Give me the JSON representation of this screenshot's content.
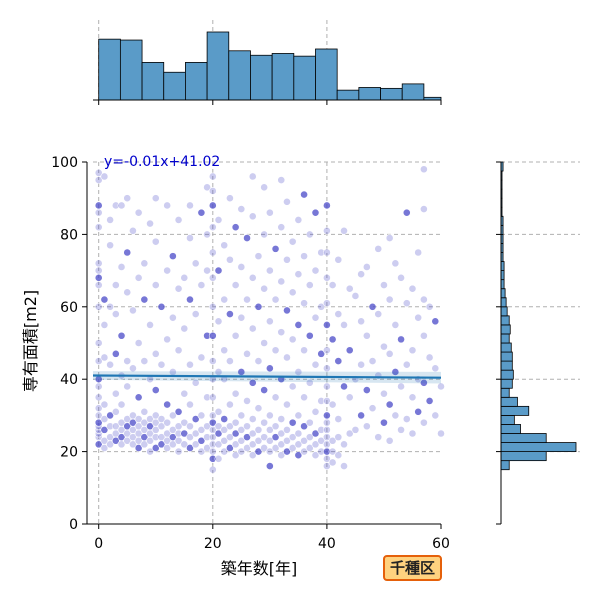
{
  "chart_data": {
    "type": "scatter",
    "xlabel": "築年数[年]",
    "ylabel": "専有面積[m2]",
    "xlim": [
      -1,
      60
    ],
    "ylim": [
      0,
      100
    ],
    "xticks": [
      0,
      20,
      40,
      60
    ],
    "yticks": [
      0,
      20,
      40,
      60,
      80,
      100
    ],
    "grid": true,
    "point_color": "#4a4ac8",
    "regression": {
      "label": "y=-0.01x+41.02",
      "slope": -0.01,
      "intercept": 41.02,
      "color": "#1f77b4"
    },
    "top_histogram": {
      "bin_edges": [
        0,
        3.8,
        7.6,
        11.4,
        15.2,
        19.0,
        22.8,
        26.6,
        30.4,
        34.2,
        38.0,
        41.8,
        45.6,
        49.4,
        53.2,
        57.0,
        60.0
      ],
      "counts": [
        68,
        67,
        42,
        31,
        42,
        76,
        55,
        50,
        52,
        49,
        57,
        11,
        14,
        13,
        18,
        3
      ],
      "color": "#5a9bc8"
    },
    "right_histogram": {
      "bin_edges": [
        15,
        17.5,
        20,
        22.5,
        25,
        27.5,
        30,
        32.5,
        35,
        37.5,
        40,
        42.5,
        45,
        47.5,
        50,
        52.5,
        55,
        57.5,
        60,
        62.5,
        65,
        67.5,
        70,
        72.5,
        75,
        77.5,
        80,
        82.5,
        85,
        87.5,
        90,
        92.5,
        95,
        97.5,
        100
      ],
      "counts": [
        8,
        44,
        73,
        44,
        19,
        13,
        27,
        16,
        8,
        11,
        12,
        11,
        11,
        10,
        8,
        9,
        8,
        6,
        5,
        4,
        3,
        3,
        3,
        2,
        2,
        2,
        2,
        2,
        1,
        1,
        1,
        1,
        1,
        2
      ],
      "color": "#5a9bc8"
    },
    "points": [
      [
        0,
        22
      ],
      [
        0,
        24
      ],
      [
        0,
        25
      ],
      [
        0,
        26
      ],
      [
        0,
        27
      ],
      [
        0,
        28
      ],
      [
        0,
        30
      ],
      [
        0,
        32
      ],
      [
        0,
        35
      ],
      [
        0,
        38
      ],
      [
        0,
        40
      ],
      [
        0,
        45
      ],
      [
        0,
        50
      ],
      [
        0,
        60
      ],
      [
        0,
        66
      ],
      [
        0,
        68
      ],
      [
        0,
        70
      ],
      [
        0,
        72
      ],
      [
        0,
        82
      ],
      [
        0,
        86
      ],
      [
        0,
        88
      ],
      [
        0,
        95
      ],
      [
        0,
        97
      ],
      [
        1,
        21
      ],
      [
        1,
        23
      ],
      [
        1,
        26
      ],
      [
        1,
        29
      ],
      [
        1,
        33
      ],
      [
        1,
        46
      ],
      [
        1,
        55
      ],
      [
        1,
        62
      ],
      [
        1,
        96
      ],
      [
        2,
        22
      ],
      [
        2,
        24
      ],
      [
        2,
        27
      ],
      [
        2,
        30
      ],
      [
        2,
        44
      ],
      [
        2,
        60
      ],
      [
        2,
        77
      ],
      [
        2,
        84
      ],
      [
        3,
        23
      ],
      [
        3,
        25
      ],
      [
        3,
        27
      ],
      [
        3,
        31
      ],
      [
        3,
        36
      ],
      [
        3,
        47
      ],
      [
        3,
        58
      ],
      [
        3,
        66
      ],
      [
        3,
        88
      ],
      [
        4,
        22
      ],
      [
        4,
        24
      ],
      [
        4,
        26
      ],
      [
        4,
        28
      ],
      [
        4,
        33
      ],
      [
        4,
        41
      ],
      [
        4,
        52
      ],
      [
        4,
        71
      ],
      [
        4,
        88
      ],
      [
        5,
        23
      ],
      [
        5,
        25
      ],
      [
        5,
        27
      ],
      [
        5,
        29
      ],
      [
        5,
        38
      ],
      [
        5,
        45
      ],
      [
        5,
        64
      ],
      [
        5,
        75
      ],
      [
        5,
        90
      ],
      [
        6,
        22
      ],
      [
        6,
        24
      ],
      [
        6,
        26
      ],
      [
        6,
        28
      ],
      [
        6,
        30
      ],
      [
        6,
        43
      ],
      [
        6,
        59
      ],
      [
        6,
        81
      ],
      [
        7,
        21
      ],
      [
        7,
        23
      ],
      [
        7,
        25
      ],
      [
        7,
        27
      ],
      [
        7,
        29
      ],
      [
        7,
        35
      ],
      [
        7,
        50
      ],
      [
        7,
        68
      ],
      [
        7,
        86
      ],
      [
        8,
        22
      ],
      [
        8,
        24
      ],
      [
        8,
        26
      ],
      [
        8,
        28
      ],
      [
        8,
        31
      ],
      [
        8,
        45
      ],
      [
        8,
        62
      ],
      [
        8,
        72
      ],
      [
        9,
        20
      ],
      [
        9,
        23
      ],
      [
        9,
        25
      ],
      [
        9,
        27
      ],
      [
        9,
        29
      ],
      [
        9,
        40
      ],
      [
        9,
        55
      ],
      [
        9,
        83
      ],
      [
        10,
        21
      ],
      [
        10,
        24
      ],
      [
        10,
        26
      ],
      [
        10,
        28
      ],
      [
        10,
        30
      ],
      [
        10,
        37
      ],
      [
        10,
        47
      ],
      [
        10,
        66
      ],
      [
        10,
        78
      ],
      [
        10,
        90
      ],
      [
        11,
        22
      ],
      [
        11,
        24
      ],
      [
        11,
        27
      ],
      [
        11,
        29
      ],
      [
        11,
        44
      ],
      [
        11,
        60
      ],
      [
        12,
        21
      ],
      [
        12,
        23
      ],
      [
        12,
        25
      ],
      [
        12,
        28
      ],
      [
        12,
        33
      ],
      [
        12,
        51
      ],
      [
        12,
        70
      ],
      [
        12,
        88
      ],
      [
        13,
        22
      ],
      [
        13,
        24
      ],
      [
        13,
        26
      ],
      [
        13,
        30
      ],
      [
        13,
        42
      ],
      [
        13,
        57
      ],
      [
        13,
        74
      ],
      [
        14,
        20
      ],
      [
        14,
        23
      ],
      [
        14,
        25
      ],
      [
        14,
        27
      ],
      [
        14,
        31
      ],
      [
        14,
        48
      ],
      [
        14,
        65
      ],
      [
        14,
        84
      ],
      [
        15,
        22
      ],
      [
        15,
        25
      ],
      [
        15,
        28
      ],
      [
        15,
        36
      ],
      [
        15,
        54
      ],
      [
        15,
        68
      ],
      [
        16,
        21
      ],
      [
        16,
        24
      ],
      [
        16,
        27
      ],
      [
        16,
        33
      ],
      [
        16,
        44
      ],
      [
        16,
        62
      ],
      [
        16,
        79
      ],
      [
        16,
        88
      ],
      [
        17,
        22
      ],
      [
        17,
        25
      ],
      [
        17,
        29
      ],
      [
        17,
        39
      ],
      [
        17,
        58
      ],
      [
        17,
        72
      ],
      [
        18,
        20
      ],
      [
        18,
        23
      ],
      [
        18,
        26
      ],
      [
        18,
        30
      ],
      [
        18,
        46
      ],
      [
        18,
        66
      ],
      [
        18,
        86
      ],
      [
        19,
        21
      ],
      [
        19,
        24
      ],
      [
        19,
        27
      ],
      [
        19,
        35
      ],
      [
        19,
        52
      ],
      [
        19,
        70
      ],
      [
        19,
        80
      ],
      [
        19,
        93
      ],
      [
        20,
        15
      ],
      [
        20,
        18
      ],
      [
        20,
        20
      ],
      [
        20,
        22
      ],
      [
        20,
        24
      ],
      [
        20,
        26
      ],
      [
        20,
        28
      ],
      [
        20,
        30
      ],
      [
        20,
        35
      ],
      [
        20,
        40
      ],
      [
        20,
        45
      ],
      [
        20,
        52
      ],
      [
        20,
        60
      ],
      [
        20,
        68
      ],
      [
        20,
        75
      ],
      [
        20,
        82
      ],
      [
        20,
        88
      ],
      [
        20,
        92
      ],
      [
        20,
        96
      ],
      [
        21,
        18
      ],
      [
        21,
        22
      ],
      [
        21,
        25
      ],
      [
        21,
        27
      ],
      [
        21,
        31
      ],
      [
        21,
        42
      ],
      [
        21,
        56
      ],
      [
        21,
        70
      ],
      [
        21,
        84
      ],
      [
        22,
        20
      ],
      [
        22,
        23
      ],
      [
        22,
        26
      ],
      [
        22,
        29
      ],
      [
        22,
        40
      ],
      [
        22,
        48
      ],
      [
        22,
        62
      ],
      [
        22,
        77
      ],
      [
        23,
        21
      ],
      [
        23,
        24
      ],
      [
        23,
        27
      ],
      [
        23,
        33
      ],
      [
        23,
        45
      ],
      [
        23,
        58
      ],
      [
        23,
        73
      ],
      [
        23,
        90
      ],
      [
        24,
        19
      ],
      [
        24,
        22
      ],
      [
        24,
        25
      ],
      [
        24,
        28
      ],
      [
        24,
        36
      ],
      [
        24,
        52
      ],
      [
        24,
        66
      ],
      [
        24,
        82
      ],
      [
        25,
        20
      ],
      [
        25,
        23
      ],
      [
        25,
        26
      ],
      [
        25,
        30
      ],
      [
        25,
        42
      ],
      [
        25,
        57
      ],
      [
        25,
        71
      ],
      [
        25,
        87
      ],
      [
        26,
        21
      ],
      [
        26,
        24
      ],
      [
        26,
        27
      ],
      [
        26,
        34
      ],
      [
        26,
        47
      ],
      [
        26,
        62
      ],
      [
        26,
        79
      ],
      [
        27,
        19
      ],
      [
        27,
        22
      ],
      [
        27,
        25
      ],
      [
        27,
        29
      ],
      [
        27,
        39
      ],
      [
        27,
        54
      ],
      [
        27,
        68
      ],
      [
        27,
        85
      ],
      [
        27,
        96
      ],
      [
        28,
        20
      ],
      [
        28,
        23
      ],
      [
        28,
        26
      ],
      [
        28,
        32
      ],
      [
        28,
        45
      ],
      [
        28,
        60
      ],
      [
        28,
        74
      ],
      [
        29,
        21
      ],
      [
        29,
        24
      ],
      [
        29,
        28
      ],
      [
        29,
        37
      ],
      [
        29,
        50
      ],
      [
        29,
        65
      ],
      [
        29,
        80
      ],
      [
        29,
        93
      ],
      [
        30,
        16
      ],
      [
        30,
        20
      ],
      [
        30,
        23
      ],
      [
        30,
        26
      ],
      [
        30,
        30
      ],
      [
        30,
        43
      ],
      [
        30,
        56
      ],
      [
        30,
        70
      ],
      [
        30,
        86
      ],
      [
        31,
        21
      ],
      [
        31,
        24
      ],
      [
        31,
        27
      ],
      [
        31,
        35
      ],
      [
        31,
        48
      ],
      [
        31,
        62
      ],
      [
        31,
        76
      ],
      [
        32,
        19
      ],
      [
        32,
        22
      ],
      [
        32,
        25
      ],
      [
        32,
        29
      ],
      [
        32,
        40
      ],
      [
        32,
        53
      ],
      [
        32,
        67
      ],
      [
        32,
        82
      ],
      [
        32,
        95
      ],
      [
        33,
        20
      ],
      [
        33,
        23
      ],
      [
        33,
        26
      ],
      [
        33,
        33
      ],
      [
        33,
        46
      ],
      [
        33,
        59
      ],
      [
        33,
        73
      ],
      [
        33,
        89
      ],
      [
        34,
        21
      ],
      [
        34,
        24
      ],
      [
        34,
        28
      ],
      [
        34,
        38
      ],
      [
        34,
        51
      ],
      [
        34,
        64
      ],
      [
        34,
        78
      ],
      [
        35,
        19
      ],
      [
        35,
        22
      ],
      [
        35,
        25
      ],
      [
        35,
        30
      ],
      [
        35,
        42
      ],
      [
        35,
        55
      ],
      [
        35,
        69
      ],
      [
        35,
        84
      ],
      [
        36,
        20
      ],
      [
        36,
        23
      ],
      [
        36,
        27
      ],
      [
        36,
        35
      ],
      [
        36,
        48
      ],
      [
        36,
        61
      ],
      [
        36,
        74
      ],
      [
        36,
        91
      ],
      [
        37,
        21
      ],
      [
        37,
        24
      ],
      [
        37,
        28
      ],
      [
        37,
        39
      ],
      [
        37,
        52
      ],
      [
        37,
        66
      ],
      [
        37,
        80
      ],
      [
        38,
        19
      ],
      [
        38,
        22
      ],
      [
        38,
        25
      ],
      [
        38,
        31
      ],
      [
        38,
        44
      ],
      [
        38,
        57
      ],
      [
        38,
        70
      ],
      [
        38,
        86
      ],
      [
        39,
        20
      ],
      [
        39,
        23
      ],
      [
        39,
        26
      ],
      [
        39,
        34
      ],
      [
        39,
        47
      ],
      [
        39,
        60
      ],
      [
        39,
        75
      ],
      [
        40,
        16
      ],
      [
        40,
        18
      ],
      [
        40,
        20
      ],
      [
        40,
        22
      ],
      [
        40,
        24
      ],
      [
        40,
        26
      ],
      [
        40,
        28
      ],
      [
        40,
        30
      ],
      [
        40,
        34
      ],
      [
        40,
        38
      ],
      [
        40,
        43
      ],
      [
        40,
        48
      ],
      [
        40,
        55
      ],
      [
        40,
        61
      ],
      [
        40,
        68
      ],
      [
        40,
        75
      ],
      [
        40,
        81
      ],
      [
        40,
        88
      ],
      [
        41,
        17
      ],
      [
        41,
        20
      ],
      [
        41,
        23
      ],
      [
        41,
        33
      ],
      [
        41,
        51
      ],
      [
        41,
        66
      ],
      [
        42,
        19
      ],
      [
        42,
        24
      ],
      [
        42,
        29
      ],
      [
        42,
        45
      ],
      [
        42,
        58
      ],
      [
        42,
        73
      ],
      [
        43,
        16
      ],
      [
        43,
        22
      ],
      [
        43,
        38
      ],
      [
        43,
        55
      ],
      [
        43,
        81
      ],
      [
        44,
        25
      ],
      [
        44,
        35
      ],
      [
        44,
        48
      ],
      [
        44,
        65
      ],
      [
        45,
        26
      ],
      [
        45,
        40
      ],
      [
        45,
        63
      ],
      [
        46,
        30
      ],
      [
        46,
        44
      ],
      [
        46,
        56
      ],
      [
        46,
        69
      ],
      [
        47,
        27
      ],
      [
        47,
        37
      ],
      [
        47,
        52
      ],
      [
        47,
        71
      ],
      [
        48,
        32
      ],
      [
        48,
        45
      ],
      [
        48,
        60
      ],
      [
        49,
        24
      ],
      [
        49,
        41
      ],
      [
        49,
        58
      ],
      [
        49,
        76
      ],
      [
        50,
        28
      ],
      [
        50,
        36
      ],
      [
        50,
        49
      ],
      [
        50,
        66
      ],
      [
        51,
        23
      ],
      [
        51,
        33
      ],
      [
        51,
        47
      ],
      [
        51,
        62
      ],
      [
        51,
        79
      ],
      [
        52,
        30
      ],
      [
        52,
        42
      ],
      [
        52,
        55
      ],
      [
        52,
        72
      ],
      [
        53,
        26
      ],
      [
        53,
        38
      ],
      [
        53,
        51
      ],
      [
        53,
        68
      ],
      [
        54,
        29
      ],
      [
        54,
        44
      ],
      [
        54,
        61
      ],
      [
        54,
        86
      ],
      [
        55,
        25
      ],
      [
        55,
        35
      ],
      [
        55,
        48
      ],
      [
        55,
        65
      ],
      [
        56,
        31
      ],
      [
        56,
        40
      ],
      [
        56,
        57
      ],
      [
        56,
        75
      ],
      [
        57,
        28
      ],
      [
        57,
        39
      ],
      [
        57,
        52
      ],
      [
        57,
        62
      ],
      [
        57,
        87
      ],
      [
        57,
        98
      ],
      [
        58,
        34
      ],
      [
        58,
        46
      ],
      [
        58,
        60
      ],
      [
        59,
        30
      ],
      [
        59,
        43
      ],
      [
        59,
        56
      ],
      [
        60,
        25
      ],
      [
        60,
        38
      ]
    ]
  },
  "ward_badge": "千種区"
}
